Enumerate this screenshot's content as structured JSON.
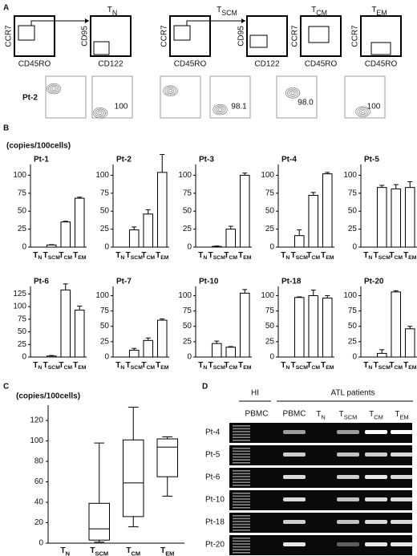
{
  "panel_a": {
    "label": "A",
    "populations": [
      [
        "T",
        "N"
      ],
      [
        "T",
        "SCM"
      ],
      [
        "T",
        "CM"
      ],
      [
        "T",
        "EM"
      ]
    ],
    "gates": [
      {
        "y": "CCR7",
        "x": "CD45RO"
      },
      {
        "y": "CD95",
        "x": "CD122"
      },
      {
        "y": "CCR7",
        "x": "CD45RO"
      },
      {
        "y": "CD95",
        "x": "CD122"
      },
      {
        "y": "CCR7",
        "x": "CD45RO"
      },
      {
        "y": "CCR7",
        "x": "CD45RO"
      }
    ],
    "sample": "Pt-2",
    "percentages": [
      "100",
      "98.1",
      "98.0",
      "100"
    ]
  },
  "panel_b": {
    "label": "B",
    "ylabel": "(copies/100cells)"
  },
  "panel_c": {
    "label": "C"
  },
  "chart_data": [
    {
      "type": "bar",
      "title": "Pt-1",
      "categories": [
        [
          "T",
          "N"
        ],
        [
          "T",
          "SCM"
        ],
        [
          "T",
          "CM"
        ],
        [
          "T",
          "EM"
        ]
      ],
      "values": [
        0,
        3,
        35,
        68
      ],
      "errors": [
        0,
        0.5,
        1,
        1.5
      ],
      "ylim": [
        0,
        115
      ],
      "yticks": [
        0,
        25,
        50,
        75,
        100
      ]
    },
    {
      "type": "bar",
      "title": "Pt-2",
      "categories": [
        [
          "T",
          "N"
        ],
        [
          "T",
          "SCM"
        ],
        [
          "T",
          "CM"
        ],
        [
          "T",
          "EM"
        ]
      ],
      "values": [
        0,
        24,
        46,
        104
      ],
      "errors": [
        0,
        4,
        6,
        25
      ],
      "ylim": [
        0,
        115
      ],
      "yticks": [
        0,
        25,
        50,
        75,
        100
      ]
    },
    {
      "type": "bar",
      "title": "Pt-3",
      "categories": [
        [
          "T",
          "N"
        ],
        [
          "T",
          "SCM"
        ],
        [
          "T",
          "CM"
        ],
        [
          "T",
          "EM"
        ]
      ],
      "values": [
        0,
        1,
        25,
        100
      ],
      "errors": [
        0,
        0.5,
        4,
        3
      ],
      "ylim": [
        0,
        115
      ],
      "yticks": [
        0,
        25,
        50,
        75,
        100
      ]
    },
    {
      "type": "bar",
      "title": "Pt-4",
      "categories": [
        [
          "T",
          "N"
        ],
        [
          "T",
          "SCM"
        ],
        [
          "T",
          "CM"
        ],
        [
          "T",
          "EM"
        ]
      ],
      "values": [
        0,
        16,
        72,
        102
      ],
      "errors": [
        0,
        8,
        4,
        2
      ],
      "ylim": [
        0,
        115
      ],
      "yticks": [
        0,
        25,
        50,
        75,
        100
      ]
    },
    {
      "type": "bar",
      "title": "Pt-5",
      "categories": [
        [
          "T",
          "N"
        ],
        [
          "T",
          "SCM"
        ],
        [
          "T",
          "CM"
        ],
        [
          "T",
          "EM"
        ]
      ],
      "values": [
        0,
        83,
        81,
        83
      ],
      "errors": [
        0,
        3,
        6,
        8
      ],
      "ylim": [
        0,
        115
      ],
      "yticks": [
        0,
        25,
        50,
        75,
        100
      ]
    },
    {
      "type": "bar",
      "title": "Pt-6",
      "categories": [
        [
          "T",
          "N"
        ],
        [
          "T",
          "SCM"
        ],
        [
          "T",
          "CM"
        ],
        [
          "T",
          "EM"
        ]
      ],
      "values": [
        0,
        2,
        133,
        93
      ],
      "errors": [
        0,
        1,
        12,
        8
      ],
      "ylim": [
        0,
        140
      ],
      "yticks": [
        0,
        25,
        50,
        75,
        100,
        125
      ]
    },
    {
      "type": "bar",
      "title": "Pt-7",
      "categories": [
        [
          "T",
          "N"
        ],
        [
          "T",
          "SCM"
        ],
        [
          "T",
          "CM"
        ],
        [
          "T",
          "EM"
        ]
      ],
      "values": [
        0,
        11,
        27,
        60
      ],
      "errors": [
        0,
        3,
        4,
        2
      ],
      "ylim": [
        0,
        115
      ],
      "yticks": [
        0,
        25,
        50,
        75,
        100
      ]
    },
    {
      "type": "bar",
      "title": "Pt-10",
      "categories": [
        [
          "T",
          "N"
        ],
        [
          "T",
          "SCM"
        ],
        [
          "T",
          "CM"
        ],
        [
          "T",
          "EM"
        ]
      ],
      "values": [
        0,
        22,
        16,
        104
      ],
      "errors": [
        0,
        4,
        1,
        6
      ],
      "ylim": [
        0,
        115
      ],
      "yticks": [
        0,
        25,
        50,
        75,
        100
      ]
    },
    {
      "type": "bar",
      "title": "Pt-18",
      "categories": [
        [
          "T",
          "N"
        ],
        [
          "T",
          "SCM"
        ],
        [
          "T",
          "CM"
        ],
        [
          "T",
          "EM"
        ]
      ],
      "values": [
        0,
        97,
        100,
        96
      ],
      "errors": [
        0,
        1,
        9,
        4
      ],
      "ylim": [
        0,
        115
      ],
      "yticks": [
        0,
        25,
        50,
        75,
        100
      ]
    },
    {
      "type": "bar",
      "title": "Pt-20",
      "categories": [
        [
          "T",
          "N"
        ],
        [
          "T",
          "SCM"
        ],
        [
          "T",
          "CM"
        ],
        [
          "T",
          "EM"
        ]
      ],
      "values": [
        0,
        6,
        106,
        46
      ],
      "errors": [
        0,
        6,
        2,
        4
      ],
      "ylim": [
        0,
        115
      ],
      "yticks": [
        0,
        25,
        50,
        75,
        100
      ]
    },
    {
      "type": "box",
      "ylabel": "(copies/100cells)",
      "categories": [
        [
          "T",
          "N"
        ],
        [
          "T",
          "SCM"
        ],
        [
          "T",
          "CM"
        ],
        [
          "T",
          "EM"
        ]
      ],
      "boxes": [
        {
          "min": 0,
          "q1": 0,
          "median": 0,
          "q3": 0,
          "max": 0
        },
        {
          "min": 1,
          "q1": 3,
          "median": 14,
          "q3": 39,
          "max": 98
        },
        {
          "min": 16,
          "q1": 26,
          "median": 59,
          "q3": 101,
          "max": 133
        },
        {
          "min": 46,
          "q1": 65,
          "median": 94,
          "q3": 102,
          "max": 104
        }
      ],
      "ylim": [
        0,
        135
      ],
      "yticks": [
        0,
        20,
        40,
        60,
        80,
        100,
        120
      ]
    }
  ],
  "panel_d": {
    "label": "D",
    "groups": [
      "HI",
      "ATL patients"
    ],
    "lanes": [
      "PBMC",
      "PBMC",
      [
        "T",
        "N"
      ],
      [
        "T",
        "SCM"
      ],
      [
        "T",
        "CM"
      ],
      [
        "T",
        "EM"
      ]
    ],
    "rows": [
      "Pt-4",
      "Pt-5",
      "Pt-6",
      "Pt-10",
      "Pt-18",
      "Pt-20"
    ]
  }
}
